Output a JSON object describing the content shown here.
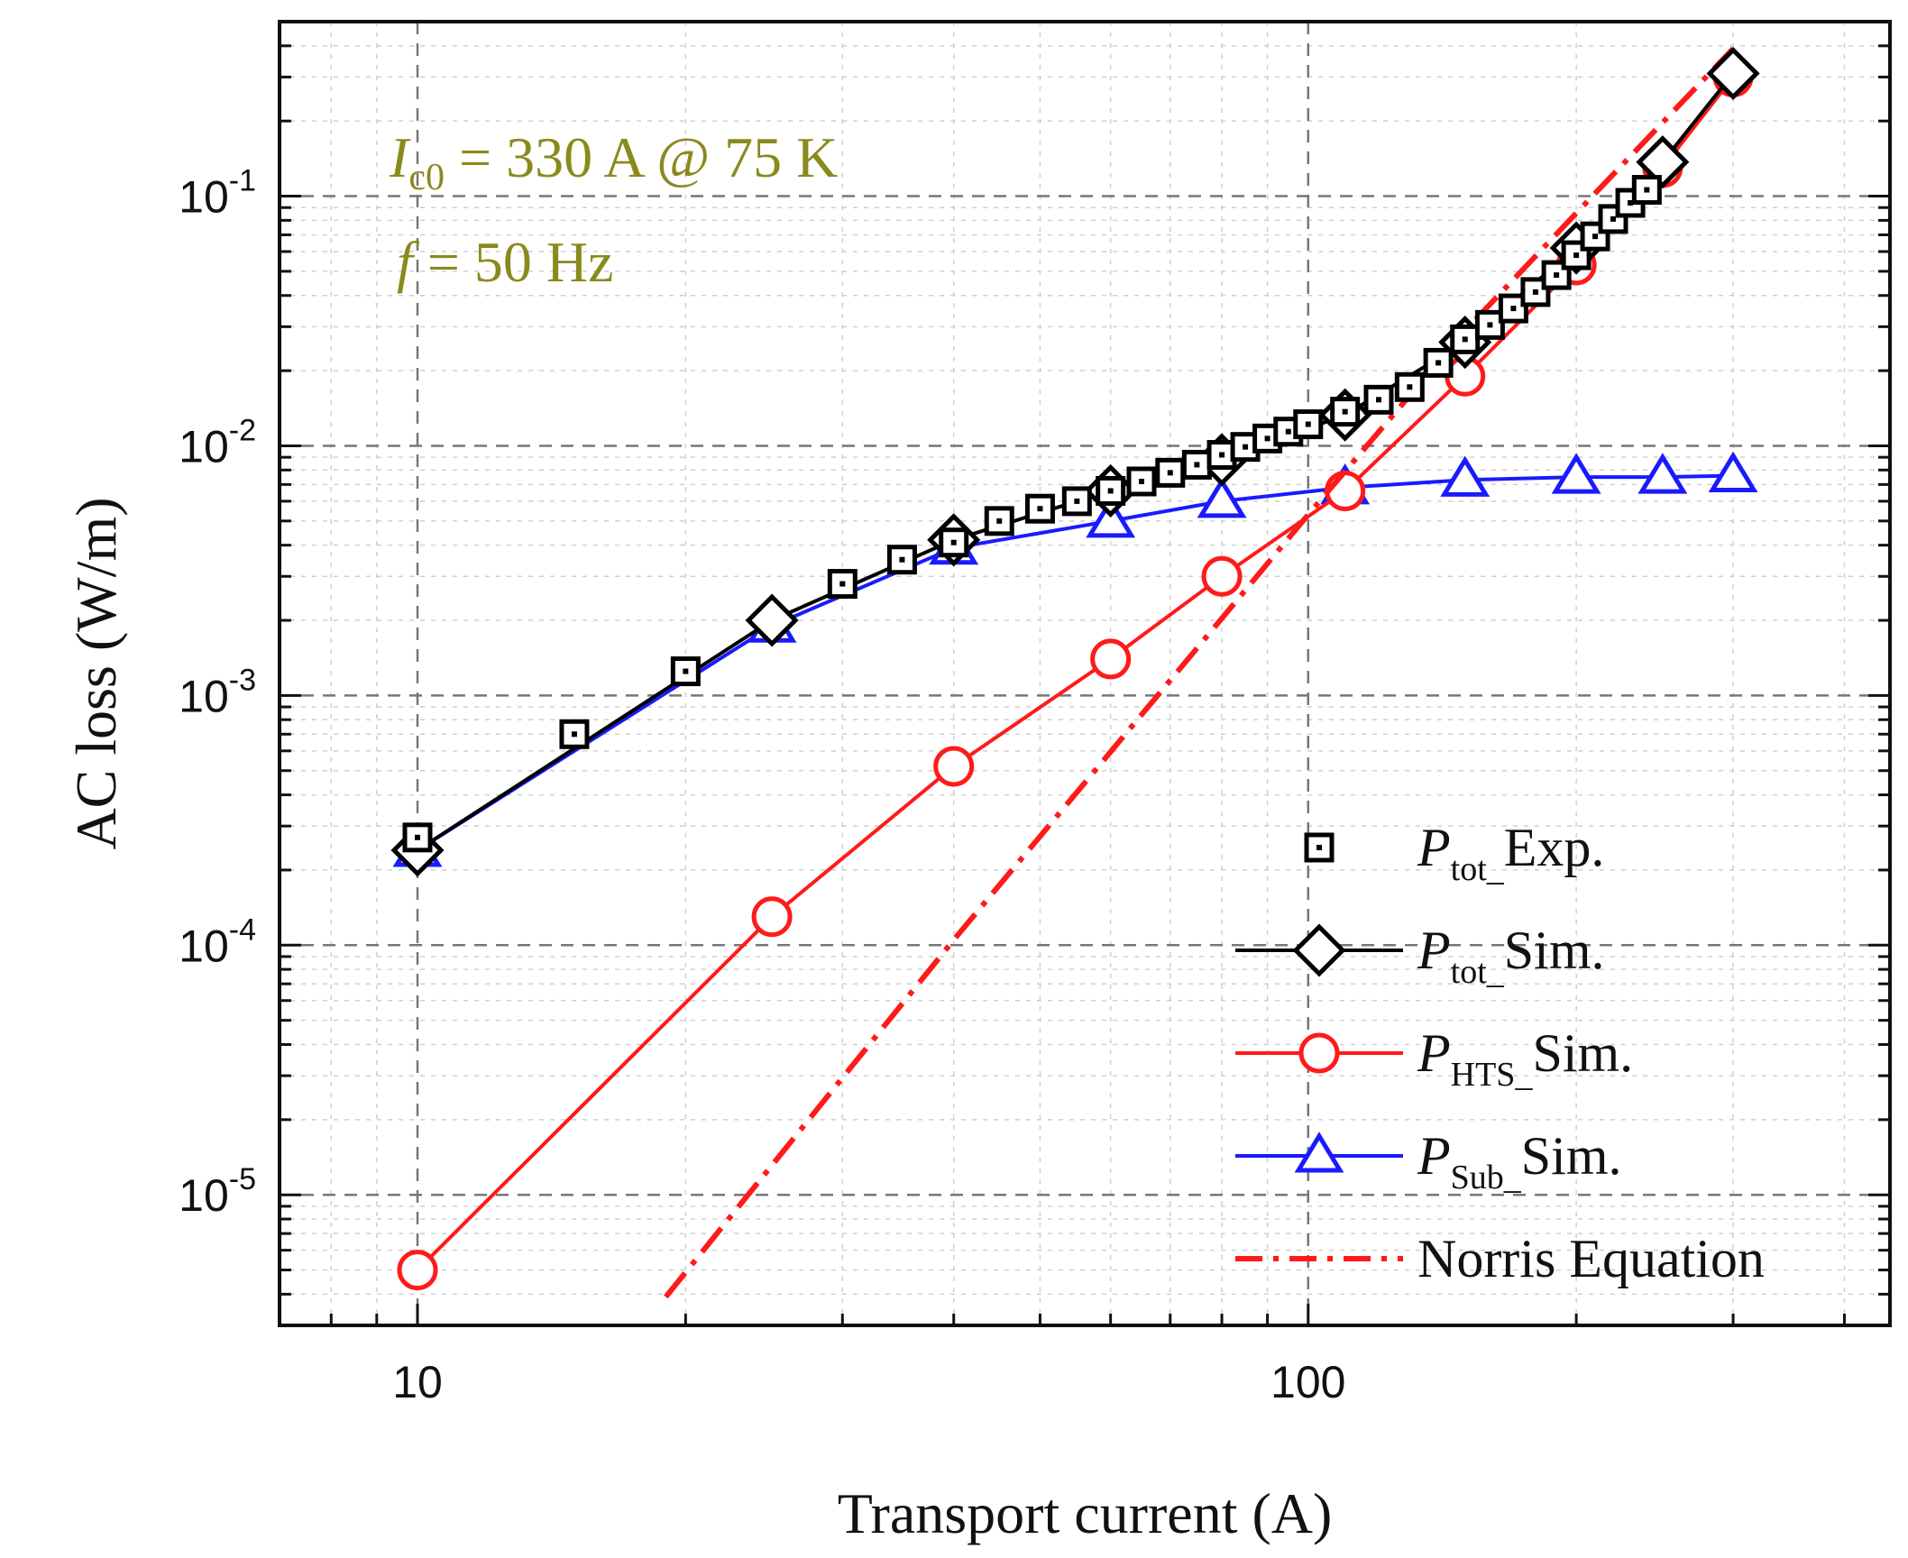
{
  "chart_data": {
    "type": "scatter",
    "xlabel": "Transport current (A)",
    "ylabel": "AC loss (W/m)",
    "x_scale": "log",
    "y_scale": "log",
    "xlim": [
      7,
      450
    ],
    "ylim": [
      3e-06,
      0.5
    ],
    "x_ticks": [
      {
        "value": 10,
        "label": "10"
      },
      {
        "value": 100,
        "label": "100"
      }
    ],
    "y_ticks": [
      {
        "value": 1e-05,
        "base": "10",
        "exp": "-5"
      },
      {
        "value": 0.0001,
        "base": "10",
        "exp": "-4"
      },
      {
        "value": 0.001,
        "base": "10",
        "exp": "-3"
      },
      {
        "value": 0.01,
        "base": "10",
        "exp": "-2"
      },
      {
        "value": 0.1,
        "base": "10",
        "exp": "-1"
      }
    ],
    "grid": true,
    "legend_position": "bottom-right",
    "annotations": [
      {
        "italic": "I",
        "sub": "c0",
        "rest": " = 330 A @ 75 K"
      },
      {
        "italic": "f",
        "sub": "",
        "rest": " = 50 Hz"
      }
    ],
    "series": [
      {
        "name": "P_tot_Exp.",
        "legend": {
          "italic": "P",
          "sub": "tot_",
          "rest": "Exp."
        },
        "marker": "square-dot",
        "line": "none",
        "color": "#000000",
        "x": [
          10,
          15,
          20,
          30,
          35,
          40,
          45,
          50,
          55,
          60,
          65,
          70,
          75,
          80,
          85,
          90,
          95,
          100,
          110,
          120,
          130,
          140,
          150,
          160,
          170,
          180,
          190,
          200,
          210,
          220,
          230,
          240
        ],
        "y": [
          0.00027,
          0.0007,
          0.00125,
          0.0028,
          0.0035,
          0.0041,
          0.005,
          0.0056,
          0.006,
          0.0066,
          0.0072,
          0.0078,
          0.0084,
          0.0092,
          0.0099,
          0.0107,
          0.0114,
          0.0122,
          0.0137,
          0.0153,
          0.0172,
          0.0215,
          0.0267,
          0.0305,
          0.0355,
          0.0413,
          0.0483,
          0.058,
          0.069,
          0.081,
          0.094,
          0.106
        ]
      },
      {
        "name": "P_tot_Sim.",
        "legend": {
          "italic": "P",
          "sub": "tot_",
          "rest": "Sim."
        },
        "marker": "diamond",
        "line": "solid",
        "color": "#000000",
        "x": [
          10,
          25,
          40,
          60,
          80,
          110,
          150,
          200,
          250,
          300
        ],
        "y": [
          0.00024,
          0.002,
          0.0042,
          0.0066,
          0.0088,
          0.0133,
          0.026,
          0.062,
          0.137,
          0.31
        ]
      },
      {
        "name": "P_HTS_Sim.",
        "legend": {
          "italic": "P",
          "sub": "HTS_",
          "rest": "Sim."
        },
        "marker": "circle",
        "line": "solid",
        "color": "#ff1a1a",
        "x": [
          10,
          25,
          40,
          60,
          80,
          110,
          150,
          200,
          250,
          300
        ],
        "y": [
          5e-06,
          0.00013,
          0.00052,
          0.0014,
          0.003,
          0.0066,
          0.019,
          0.053,
          0.13,
          0.3
        ]
      },
      {
        "name": "P_Sub_Sim.",
        "legend": {
          "italic": "P",
          "sub": "Sub_",
          "rest": "Sim."
        },
        "marker": "triangle",
        "line": "solid",
        "color": "#1a1aff",
        "x": [
          10,
          25,
          40,
          60,
          80,
          110,
          150,
          200,
          250,
          300
        ],
        "y": [
          0.00024,
          0.0019,
          0.0039,
          0.005,
          0.006,
          0.0068,
          0.0073,
          0.0075,
          0.0075,
          0.0076
        ]
      },
      {
        "name": "Norris Equation",
        "legend": {
          "italic": "",
          "sub": "",
          "rest": "Norris Equation"
        },
        "marker": "none",
        "line": "dashdot",
        "color": "#ff1a1a",
        "x": [
          19,
          40,
          70,
          100,
          150,
          200,
          250,
          300
        ],
        "y": [
          3.9e-06,
          0.000105,
          0.00115,
          0.0053,
          0.0289,
          0.0855,
          0.197,
          0.39
        ]
      }
    ]
  }
}
